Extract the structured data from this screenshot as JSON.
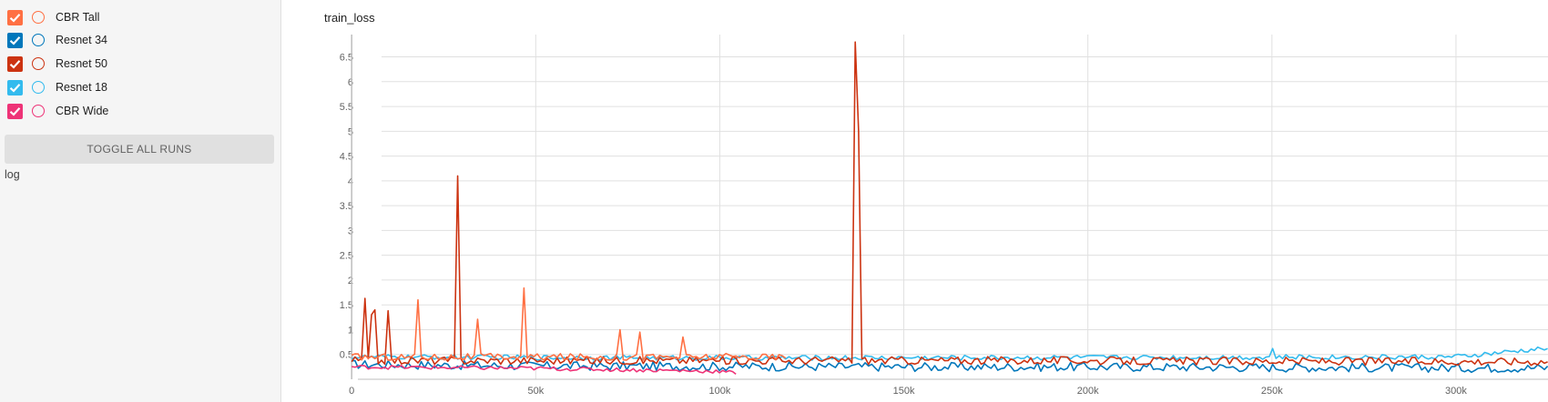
{
  "sidebar": {
    "runs": [
      {
        "label": "CBR Tall",
        "color": "#ff7043",
        "checked": true
      },
      {
        "label": "Resnet 34",
        "color": "#0077bb",
        "checked": true
      },
      {
        "label": "Resnet 50",
        "color": "#cc3311",
        "checked": true
      },
      {
        "label": "Resnet 18",
        "color": "#33bbee",
        "checked": true
      },
      {
        "label": "CBR Wide",
        "color": "#ee3377",
        "checked": true
      }
    ],
    "toggle_all_label": "TOGGLE ALL RUNS",
    "log_label": "log"
  },
  "chart_data": {
    "type": "line",
    "title": "train_loss",
    "xlabel": "",
    "ylabel": "",
    "x_ticks": [
      0,
      50000,
      100000,
      150000,
      200000,
      250000,
      300000
    ],
    "x_tick_labels": [
      "0",
      "50k",
      "100k",
      "150k",
      "200k",
      "250k",
      "300k"
    ],
    "y_ticks": [
      0.5,
      1,
      1.5,
      2,
      2.5,
      3,
      3.5,
      4,
      4.5,
      5,
      5.5,
      6,
      6.5
    ],
    "y_tick_labels": [
      "0.5",
      "1",
      "1.5",
      "2",
      "2.5",
      "3",
      "3.5",
      "4",
      "4.5",
      "5",
      "5.5",
      "6",
      "6.5"
    ],
    "xlim": [
      -5000,
      325000
    ],
    "ylim": [
      0,
      6.95
    ],
    "grid": true,
    "series": [
      {
        "name": "Resnet 34",
        "color": "#0077bb",
        "x_range": [
          0,
          325000
        ],
        "base": 0.27,
        "noise": 0.09,
        "spikes": [],
        "points": [
          [
            0,
            0.3
          ],
          [
            50000,
            0.27
          ],
          [
            100000,
            0.26
          ],
          [
            150000,
            0.25
          ],
          [
            200000,
            0.25
          ],
          [
            250000,
            0.24
          ],
          [
            300000,
            0.23
          ],
          [
            325000,
            0.23
          ]
        ]
      },
      {
        "name": "Resnet 18",
        "color": "#33bbee",
        "x_range": [
          0,
          325000
        ],
        "base": 0.44,
        "noise": 0.05,
        "spikes": [
          [
            250000,
            0.62
          ],
          [
            325000,
            0.62
          ]
        ],
        "points": [
          [
            0,
            0.45
          ],
          [
            100000,
            0.43
          ],
          [
            200000,
            0.44
          ],
          [
            300000,
            0.45
          ],
          [
            325000,
            0.62
          ]
        ]
      },
      {
        "name": "Resnet 50",
        "color": "#cc3311",
        "x_range": [
          0,
          325000
        ],
        "base": 0.38,
        "noise": 0.08,
        "spikes": [
          [
            4000,
            1.63
          ],
          [
            5000,
            1.3
          ],
          [
            6000,
            1.4
          ],
          [
            10000,
            1.38
          ],
          [
            28500,
            4.1
          ],
          [
            137000,
            6.8
          ],
          [
            137500,
            5.0
          ]
        ],
        "points": [
          [
            0,
            0.45
          ],
          [
            4000,
            1.63
          ],
          [
            28500,
            4.1
          ],
          [
            137000,
            6.8
          ],
          [
            200000,
            0.37
          ],
          [
            325000,
            0.36
          ]
        ]
      },
      {
        "name": "CBR Wide",
        "color": "#ee3377",
        "x_range": [
          0,
          105000
        ],
        "base": 0.23,
        "noise": 0.04,
        "spikes": [],
        "points": [
          [
            0,
            0.25
          ],
          [
            50000,
            0.22
          ],
          [
            100000,
            0.16
          ],
          [
            105000,
            0.12
          ]
        ]
      },
      {
        "name": "CBR Tall",
        "color": "#ff7043",
        "x_range": [
          0,
          118000
        ],
        "base": 0.45,
        "noise": 0.07,
        "spikes": [
          [
            18000,
            1.6
          ],
          [
            34000,
            1.21
          ],
          [
            47000,
            1.84
          ],
          [
            73000,
            1.0
          ],
          [
            78000,
            0.95
          ],
          [
            90000,
            0.85
          ]
        ],
        "points": [
          [
            0,
            0.5
          ],
          [
            18000,
            1.6
          ],
          [
            47000,
            1.84
          ],
          [
            73000,
            1.0
          ],
          [
            118000,
            0.42
          ]
        ]
      }
    ]
  }
}
